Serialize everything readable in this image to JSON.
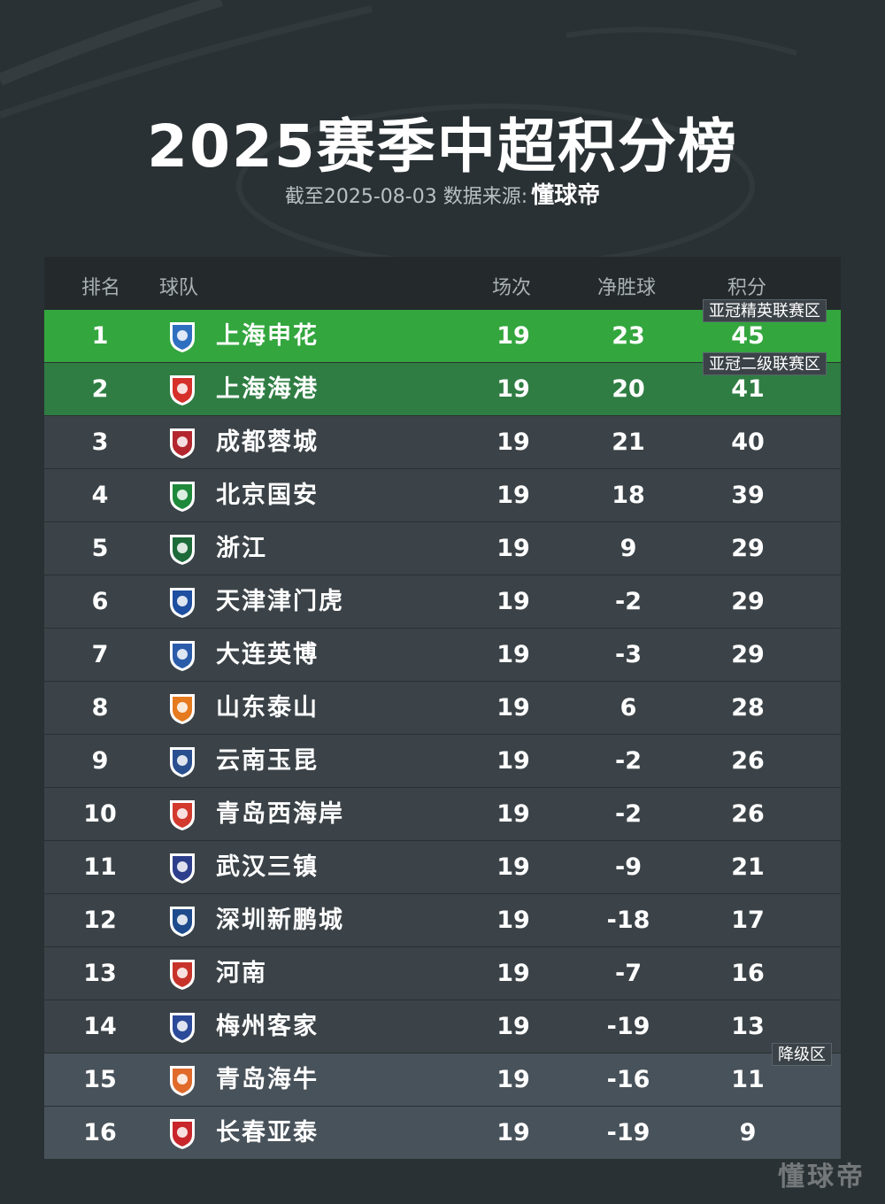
{
  "title": "2025赛季中超积分榜",
  "subtitle": "截至2025-08-03 数据来源:",
  "brand": "懂球帝",
  "headers": {
    "rank": "排名",
    "team": "球队",
    "played": "场次",
    "gd": "净胜球",
    "pts": "积分"
  },
  "zones": {
    "acl_elite": "亚冠精英联赛区",
    "acl_two": "亚冠二级联赛区",
    "relegation": "降级区"
  },
  "rows": [
    {
      "rank": "1",
      "team": "上海申花",
      "played": "19",
      "gd": "23",
      "pts": "45",
      "badge_color": "#2f6fc0",
      "icon": "shanghai-shenhua-badge"
    },
    {
      "rank": "2",
      "team": "上海海港",
      "played": "19",
      "gd": "20",
      "pts": "41",
      "badge_color": "#d6302a",
      "icon": "shanghai-port-badge"
    },
    {
      "rank": "3",
      "team": "成都蓉城",
      "played": "19",
      "gd": "21",
      "pts": "40",
      "badge_color": "#b3262e",
      "icon": "chengdu-rongcheng-badge"
    },
    {
      "rank": "4",
      "team": "北京国安",
      "played": "19",
      "gd": "18",
      "pts": "39",
      "badge_color": "#1f8a3b",
      "icon": "beijing-guoan-badge"
    },
    {
      "rank": "5",
      "team": "浙江",
      "played": "19",
      "gd": "9",
      "pts": "29",
      "badge_color": "#1e6b3a",
      "icon": "zhejiang-badge"
    },
    {
      "rank": "6",
      "team": "天津津门虎",
      "played": "19",
      "gd": "-2",
      "pts": "29",
      "badge_color": "#1e4fa0",
      "icon": "tianjin-jinmen-tiger-badge"
    },
    {
      "rank": "7",
      "team": "大连英博",
      "played": "19",
      "gd": "-3",
      "pts": "29",
      "badge_color": "#2a5caa",
      "icon": "dalian-yingbo-badge"
    },
    {
      "rank": "8",
      "team": "山东泰山",
      "played": "19",
      "gd": "6",
      "pts": "28",
      "badge_color": "#e57a1f",
      "icon": "shandong-taishan-badge"
    },
    {
      "rank": "9",
      "team": "云南玉昆",
      "played": "19",
      "gd": "-2",
      "pts": "26",
      "badge_color": "#2a4f8f",
      "icon": "yunnan-yukun-badge"
    },
    {
      "rank": "10",
      "team": "青岛西海岸",
      "played": "19",
      "gd": "-2",
      "pts": "26",
      "badge_color": "#d23a2e",
      "icon": "qingdao-west-coast-badge"
    },
    {
      "rank": "11",
      "team": "武汉三镇",
      "played": "19",
      "gd": "-9",
      "pts": "21",
      "badge_color": "#2d3f8c",
      "icon": "wuhan-three-towns-badge"
    },
    {
      "rank": "12",
      "team": "深圳新鹏城",
      "played": "19",
      "gd": "-18",
      "pts": "17",
      "badge_color": "#1d4b8c",
      "icon": "shenzhen-peng-city-badge"
    },
    {
      "rank": "13",
      "team": "河南",
      "played": "19",
      "gd": "-7",
      "pts": "16",
      "badge_color": "#c7332b",
      "icon": "henan-badge"
    },
    {
      "rank": "14",
      "team": "梅州客家",
      "played": "19",
      "gd": "-19",
      "pts": "13",
      "badge_color": "#2b4a9a",
      "icon": "meizhou-hakka-badge"
    },
    {
      "rank": "15",
      "team": "青岛海牛",
      "played": "19",
      "gd": "-16",
      "pts": "11",
      "badge_color": "#e06a2a",
      "icon": "qingdao-hainiu-badge"
    },
    {
      "rank": "16",
      "team": "长春亚泰",
      "played": "19",
      "gd": "-19",
      "pts": "9",
      "badge_color": "#c8262b",
      "icon": "changchun-yatai-badge"
    }
  ],
  "colors": {
    "background": "#2a3134",
    "row": "#3b4348",
    "acl_elite": "#33a63e",
    "acl_two": "#2f7d43",
    "relegation": "#48525a"
  }
}
